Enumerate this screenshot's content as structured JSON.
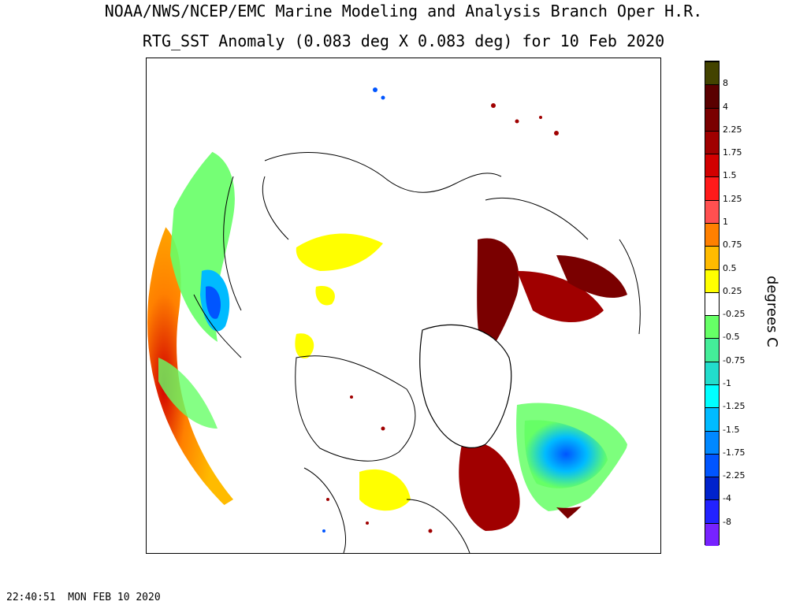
{
  "header": {
    "title_line1": "NOAA/NWS/NCEP/EMC Marine Modeling and Analysis Branch Oper H.R.",
    "title_line2": "RTG_SST Anomaly (0.083 deg X 0.083 deg) for 10 Feb 2020"
  },
  "colorbar": {
    "units": "degrees C",
    "bins": [
      {
        "color": "#434300",
        "label": "8"
      },
      {
        "color": "#5a0000",
        "label": "4"
      },
      {
        "color": "#7a0000",
        "label": "2.25"
      },
      {
        "color": "#a00000",
        "label": "1.75"
      },
      {
        "color": "#d20000",
        "label": "1.5"
      },
      {
        "color": "#ff1a1a",
        "label": "1.25"
      },
      {
        "color": "#ff5050",
        "label": "1"
      },
      {
        "color": "#ff8000",
        "label": "0.75"
      },
      {
        "color": "#ffbb00",
        "label": "0.5"
      },
      {
        "color": "#ffff00",
        "label": "0.25"
      },
      {
        "color": "#ffffff",
        "label": "-0.25"
      },
      {
        "color": "#66ff66",
        "label": "-0.5"
      },
      {
        "color": "#44ee99",
        "label": "-0.75"
      },
      {
        "color": "#22ddcc",
        "label": "-1"
      },
      {
        "color": "#00ffff",
        "label": "-1.25"
      },
      {
        "color": "#00bbff",
        "label": "-1.5"
      },
      {
        "color": "#0088ff",
        "label": "-1.75"
      },
      {
        "color": "#0055ff",
        "label": "-2.25"
      },
      {
        "color": "#0022cc",
        "label": "-4"
      },
      {
        "color": "#2222ff",
        "label": "-8"
      },
      {
        "color": "#7722ff",
        "label": ""
      }
    ]
  },
  "timestamp": "22:40:51  MON FEB 10 2020"
}
